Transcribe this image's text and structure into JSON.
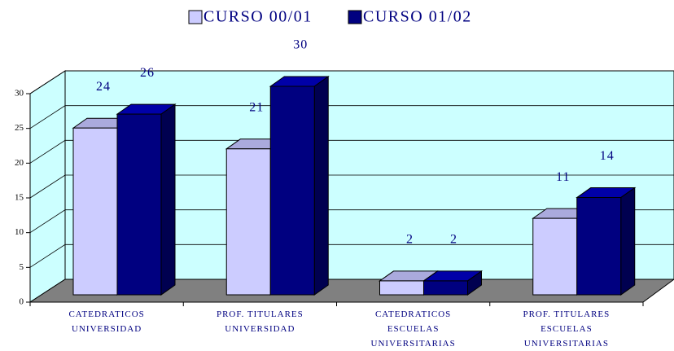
{
  "chart_data": {
    "type": "bar3d",
    "categories": [
      "CATEDRATICOS\nUNIVERSIDAD",
      "PROF. TITULARES\nUNIVERSIDAD",
      "CATEDRATICOS\nESCUELAS\nUNIVERSITARIAS",
      "PROF. TITULARES\nESCUELAS\nUNIVERSITARIAS"
    ],
    "series": [
      {
        "name": "CURSO 00/01",
        "color": "#ccccff",
        "values": [
          24,
          21,
          2,
          11
        ]
      },
      {
        "name": "CURSO 01/02",
        "color": "#000080",
        "values": [
          26,
          30,
          2,
          14
        ]
      }
    ],
    "ylim": [
      0,
      30
    ],
    "yticks": [
      0,
      5,
      10,
      15,
      20,
      25,
      30
    ],
    "grid": true,
    "legend": "top"
  }
}
